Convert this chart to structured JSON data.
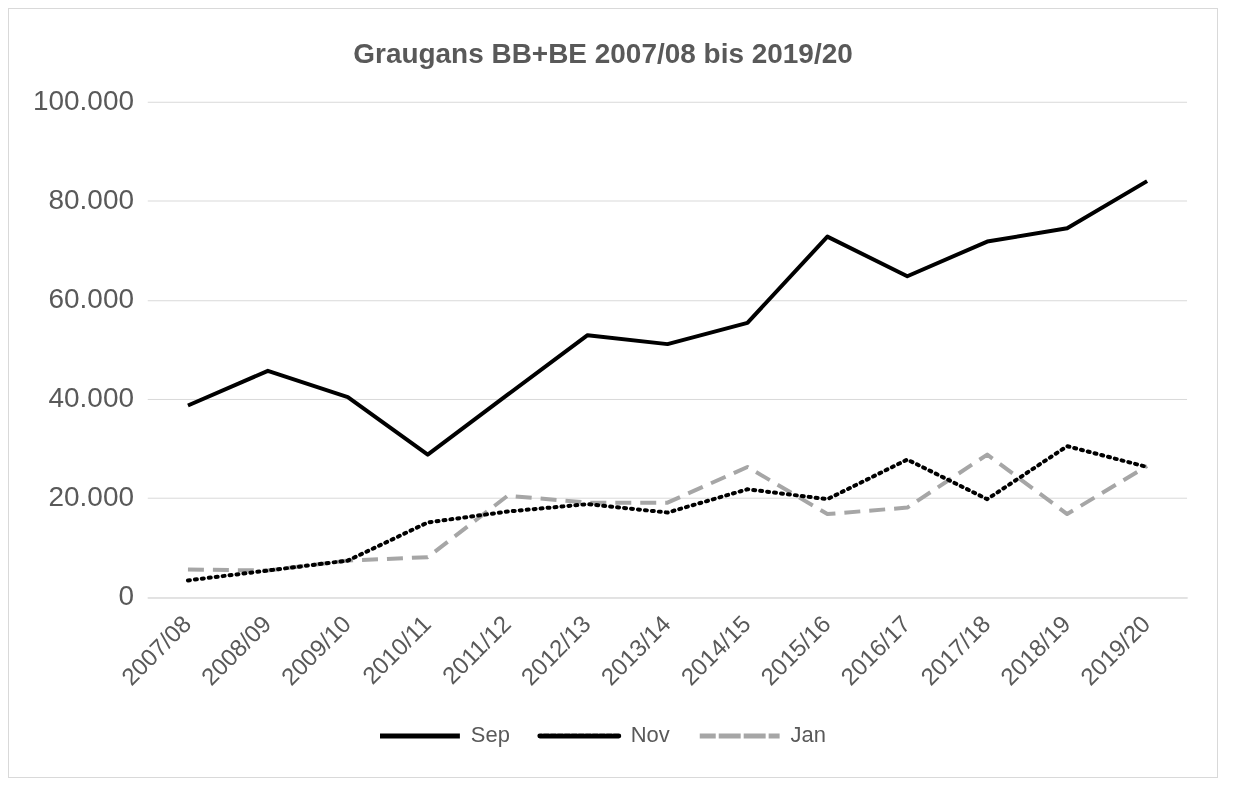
{
  "chart_data": {
    "type": "line",
    "title": "Graugans BB+BE 2007/08 bis 2019/20",
    "categories": [
      "2007/08",
      "2008/09",
      "2009/10",
      "2010/11",
      "2011/12",
      "2012/13",
      "2013/14",
      "2014/15",
      "2015/16",
      "2016/17",
      "2017/18",
      "2018/19",
      "2019/20"
    ],
    "series": [
      {
        "name": "Sep",
        "color": "#000000",
        "line_style": "solid",
        "values": [
          38800,
          45800,
          40500,
          28900,
          41000,
          53000,
          51200,
          55500,
          72900,
          64900,
          71900,
          74600,
          84100
        ]
      },
      {
        "name": "Nov",
        "color": "#000000",
        "line_style": "dotted",
        "values": [
          3500,
          5500,
          7500,
          15200,
          17400,
          18900,
          17200,
          21900,
          19900,
          27900,
          19900,
          30600,
          26400
        ]
      },
      {
        "name": "Jan",
        "color": "#a6a6a6",
        "line_style": "dashed",
        "values": [
          5700,
          5500,
          7500,
          8200,
          20600,
          19200,
          19200,
          26400,
          16900,
          18200,
          28900,
          16900,
          26600
        ]
      }
    ],
    "ylim": [
      0,
      100000
    ],
    "yticks": [
      0,
      {
        "value": 20000,
        "label": "20.000"
      },
      {
        "value": 40000,
        "label": "40.000"
      },
      {
        "value": 60000,
        "label": "60.000"
      },
      {
        "value": 80000,
        "label": "80.000"
      },
      {
        "value": 100000,
        "label": "100.000"
      }
    ],
    "grid": "y",
    "legend": "bottom",
    "marker": "none"
  }
}
